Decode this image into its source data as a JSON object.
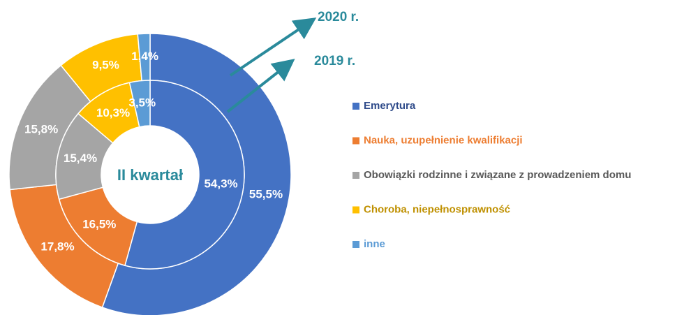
{
  "chart_data": {
    "type": "donut",
    "center_label": "II kwartał",
    "categories": [
      "Emerytura",
      "Nauka, uzupełnienie kwalifikacji",
      "Obowiązki rodzinne i związane z prowadzeniem domu",
      "Choroba, niepełnosprawność",
      "inne"
    ],
    "colors": [
      "#4472c4",
      "#ed7d31",
      "#a5a5a5",
      "#ffc000",
      "#5b9bd5"
    ],
    "legend_text_colors": [
      "#2f4b8a",
      "#ed7d31",
      "#595959",
      "#bf9000",
      "#5b9bd5"
    ],
    "series": [
      {
        "name": "2020 r.",
        "values": [
          55.5,
          17.8,
          15.8,
          9.5,
          1.4
        ],
        "value_labels": [
          "55,5%",
          "17,8%",
          "15,8%",
          "9,5%",
          "1,4%"
        ]
      },
      {
        "name": "2019 r.",
        "values": [
          54.3,
          16.5,
          15.4,
          10.3,
          3.5
        ],
        "value_labels": [
          "54,3%",
          "16,5%",
          "15,4%",
          "10,3%",
          "3,5%"
        ]
      }
    ]
  }
}
